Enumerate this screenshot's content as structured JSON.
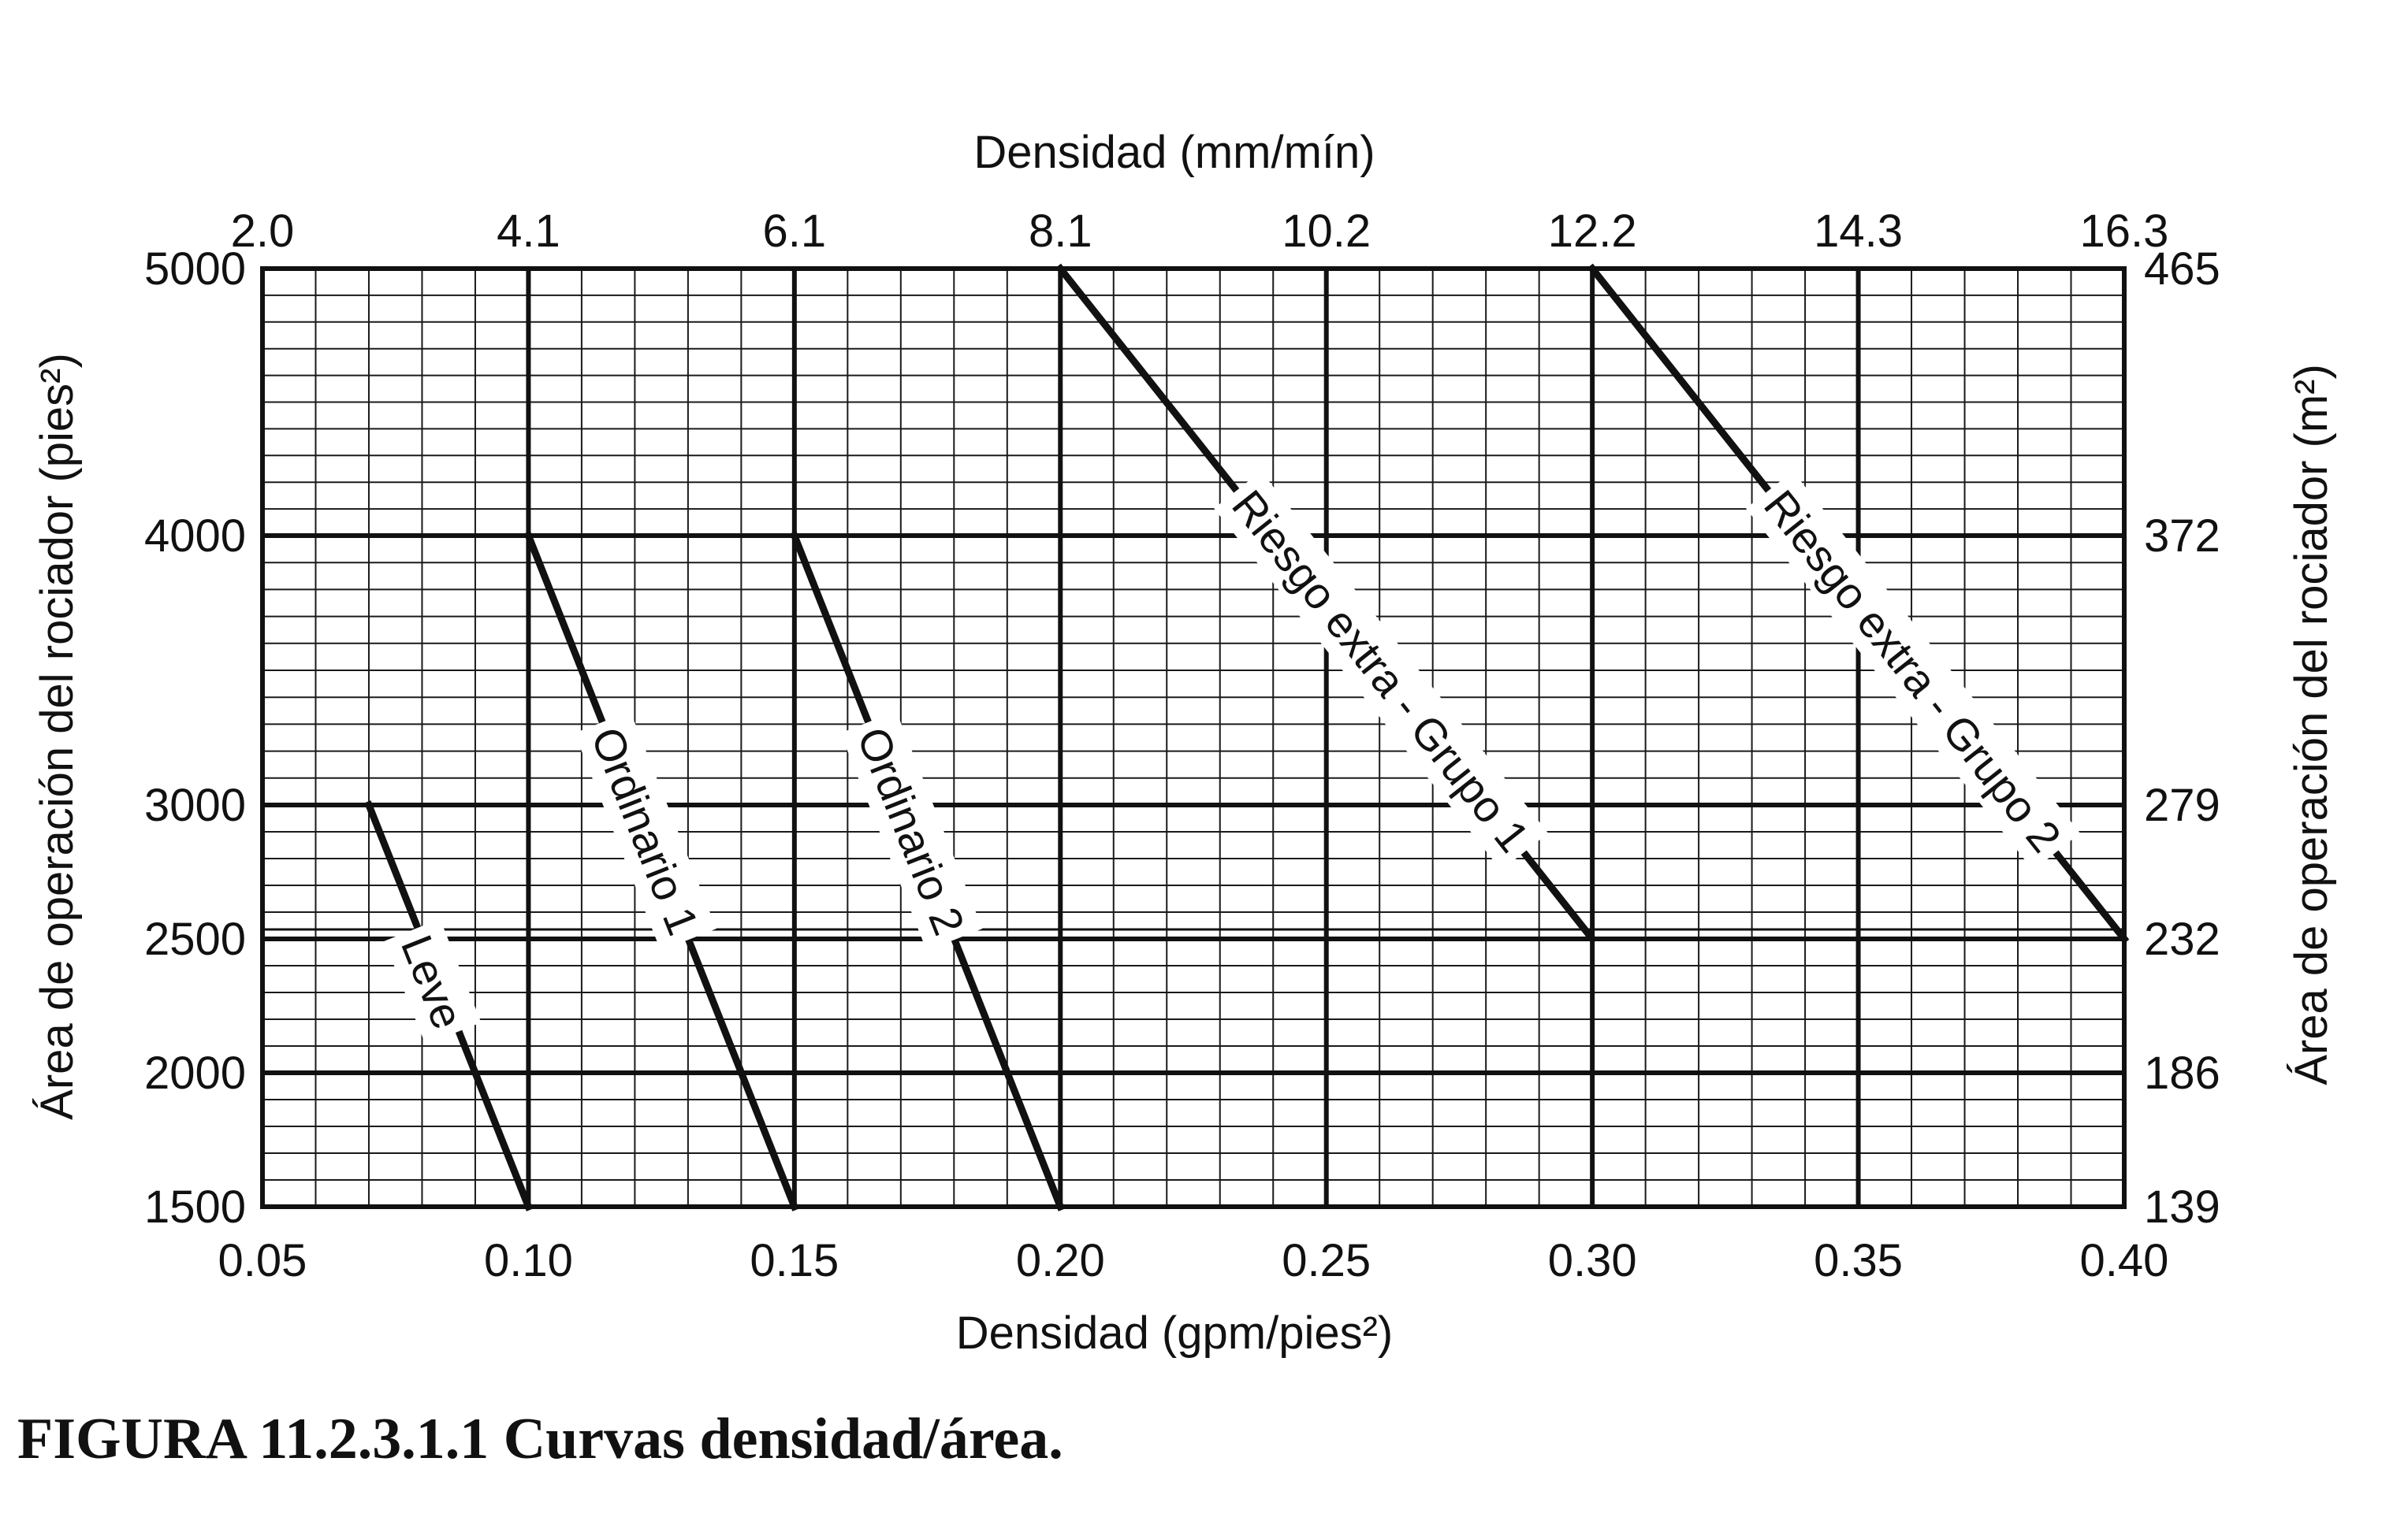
{
  "caption": "FIGURA 11.2.3.1.1 Curvas densidad/área.",
  "chart_data": {
    "type": "line",
    "title": "",
    "xlabel_bottom": "Densidad (gpm/pies²)",
    "xlabel_top": "Densidad (mm/mín)",
    "ylabel_left": "Área de operación del rociador (pies²)",
    "ylabel_right": "Área de operación del rociador (m²)",
    "xlim": [
      0.05,
      0.4
    ],
    "ylim": [
      1500,
      5000
    ],
    "y_scale": "piecewise (1500–2000, 2000–2500, 2500–3000, 3000–4000, 4000–5000)",
    "grid": true,
    "x_ticks_bottom": [
      "0.05",
      "0.10",
      "0.15",
      "0.20",
      "0.25",
      "0.30",
      "0.35",
      "0.40"
    ],
    "x_ticks_top": [
      "2.0",
      "4.1",
      "6.1",
      "8.1",
      "10.2",
      "12.2",
      "14.3",
      "16.3"
    ],
    "y_ticks_left": [
      "1500",
      "2000",
      "2500",
      "3000",
      "4000",
      "5000"
    ],
    "y_ticks_right": [
      "139",
      "186",
      "232",
      "279",
      "372",
      "465"
    ],
    "series": [
      {
        "name": "Leve",
        "x": [
          0.07,
          0.1
        ],
        "y": [
          3000,
          1500
        ]
      },
      {
        "name": "Ordinario 1",
        "x": [
          0.1,
          0.15
        ],
        "y": [
          4000,
          1500
        ]
      },
      {
        "name": "Ordinario 2",
        "x": [
          0.15,
          0.2
        ],
        "y": [
          4000,
          1500
        ]
      },
      {
        "name": "Riesgo extra - Grupo 1",
        "x": [
          0.2,
          0.3
        ],
        "y": [
          5000,
          2500
        ]
      },
      {
        "name": "Riesgo extra - Grupo 2",
        "x": [
          0.3,
          0.4
        ],
        "y": [
          5000,
          2500
        ]
      }
    ]
  }
}
